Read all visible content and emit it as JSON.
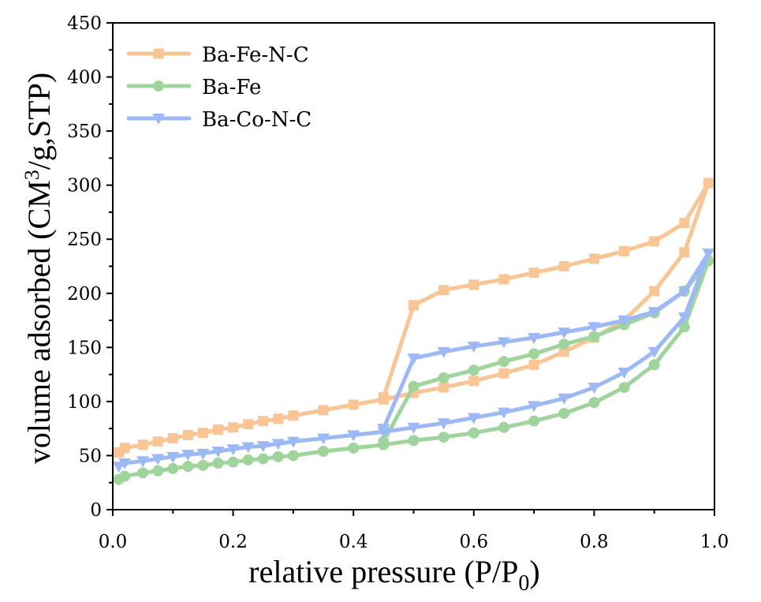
{
  "chart_data": {
    "type": "line",
    "title": "",
    "xlabel": "relative pressure (P/P",
    "xlabel_sub": "0",
    "xlabel_end": ")",
    "ylabel": "volume adsorbed (CM",
    "ylabel_sup": "3",
    "ylabel_end": "/g,STP)",
    "xlim": [
      0.0,
      1.0
    ],
    "ylim": [
      0,
      450
    ],
    "xticks": [
      "0.0",
      "0.2",
      "0.4",
      "0.6",
      "0.8",
      "1.0"
    ],
    "xtick_values": [
      0.0,
      0.2,
      0.4,
      0.6,
      0.8,
      1.0
    ],
    "yticks": [
      "0",
      "50",
      "100",
      "150",
      "200",
      "250",
      "300",
      "350",
      "400",
      "450"
    ],
    "ytick_values": [
      0,
      50,
      100,
      150,
      200,
      250,
      300,
      350,
      400,
      450
    ],
    "grid": false,
    "legend_position": "top-left",
    "series": [
      {
        "name": "Ba-Fe-N-C",
        "color": "#f9c594",
        "marker": "square",
        "x": [
          0.01,
          0.02,
          0.05,
          0.075,
          0.1,
          0.125,
          0.15,
          0.175,
          0.2,
          0.225,
          0.25,
          0.275,
          0.3,
          0.35,
          0.4,
          0.45,
          0.5,
          0.55,
          0.6,
          0.65,
          0.7,
          0.75,
          0.8,
          0.85,
          0.9,
          0.95,
          0.99,
          0.95,
          0.9,
          0.85,
          0.8,
          0.75,
          0.7,
          0.65,
          0.6,
          0.55,
          0.5,
          0.45
        ],
        "y": [
          53,
          57,
          60,
          63,
          66,
          69,
          71,
          74,
          76,
          79,
          82,
          84,
          87,
          92,
          97,
          102,
          108,
          113,
          119,
          126,
          134,
          146,
          159,
          175,
          202,
          238,
          302,
          265,
          248,
          239,
          232,
          225,
          219,
          213,
          208,
          203,
          189,
          104
        ]
      },
      {
        "name": "Ba-Fe",
        "color": "#9fd49c",
        "marker": "circle",
        "x": [
          0.01,
          0.02,
          0.05,
          0.075,
          0.1,
          0.125,
          0.15,
          0.175,
          0.2,
          0.225,
          0.25,
          0.275,
          0.3,
          0.35,
          0.4,
          0.45,
          0.5,
          0.55,
          0.6,
          0.65,
          0.7,
          0.75,
          0.8,
          0.85,
          0.9,
          0.95,
          0.99,
          0.95,
          0.9,
          0.85,
          0.8,
          0.75,
          0.7,
          0.65,
          0.6,
          0.55,
          0.5,
          0.45
        ],
        "y": [
          28,
          31,
          34,
          36,
          38,
          40,
          41,
          43,
          44,
          46,
          47,
          49,
          50,
          54,
          57,
          60,
          64,
          67,
          71,
          76,
          82,
          89,
          99,
          113,
          134,
          169,
          230,
          202,
          182,
          171,
          160,
          153,
          144,
          137,
          129,
          122,
          114,
          63
        ]
      },
      {
        "name": "Ba-Co-N-C",
        "color": "#9cb9f5",
        "marker": "triangle-down",
        "x": [
          0.01,
          0.02,
          0.05,
          0.075,
          0.1,
          0.125,
          0.15,
          0.175,
          0.2,
          0.225,
          0.25,
          0.275,
          0.3,
          0.35,
          0.4,
          0.45,
          0.5,
          0.55,
          0.6,
          0.65,
          0.7,
          0.75,
          0.8,
          0.85,
          0.9,
          0.95,
          0.99,
          0.95,
          0.9,
          0.85,
          0.8,
          0.75,
          0.7,
          0.65,
          0.6,
          0.55,
          0.5,
          0.45
        ],
        "y": [
          40,
          43,
          45,
          47,
          49,
          51,
          52,
          54,
          56,
          58,
          59,
          61,
          63,
          66,
          69,
          72,
          76,
          80,
          85,
          90,
          96,
          103,
          113,
          127,
          146,
          178,
          237,
          202,
          183,
          175,
          169,
          164,
          159,
          155,
          151,
          146,
          140,
          75
        ]
      }
    ]
  }
}
